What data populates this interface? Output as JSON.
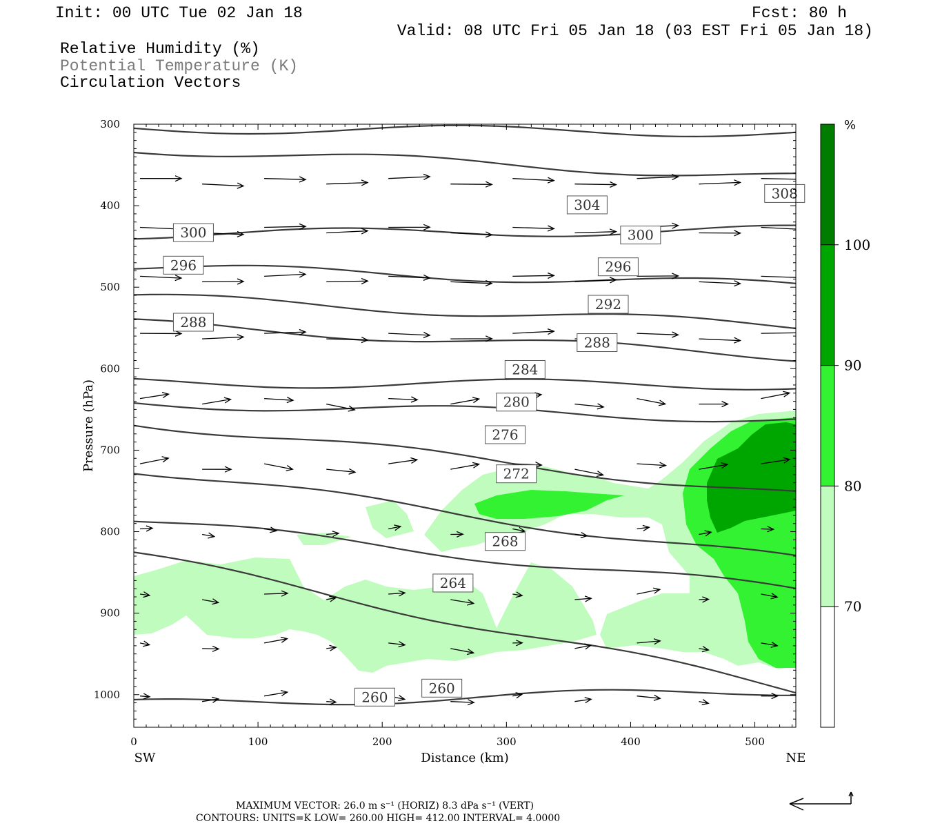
{
  "header": {
    "init": "Init: 00 UTC Tue 02 Jan 18",
    "fcst": "Fcst:   80 h",
    "valid": "Valid: 08 UTC Fri 05 Jan 18 (03 EST Fri 05 Jan 18)",
    "legend": [
      {
        "text": "Relative Humidity (%)",
        "color": "#000000"
      },
      {
        "text": "Potential Temperature (K)",
        "color": "#7a7a7a"
      },
      {
        "text": "Circulation Vectors",
        "color": "#000000"
      }
    ]
  },
  "chart_data": {
    "type": "cross-section",
    "xlabel": "Distance (km)",
    "ylabel": "Pressure (hPa)",
    "xlim": [
      0,
      533
    ],
    "ylim": [
      1040,
      300
    ],
    "y_reversed": true,
    "x_ticks": [
      0,
      100,
      200,
      300,
      400,
      500
    ],
    "y_ticks": [
      300,
      400,
      500,
      600,
      700,
      800,
      900,
      1000
    ],
    "endpoints": {
      "left": "SW",
      "right": "NE"
    },
    "theta_contours": [
      {
        "label": "308",
        "p_left": 305,
        "p_right": 310
      },
      {
        "label": "304",
        "p_left": 330,
        "p_right": 365
      },
      {
        "label": "300",
        "p_left": 435,
        "p_right": 430
      },
      {
        "label": "296",
        "p_left": 475,
        "p_right": 498
      },
      {
        "label": "292",
        "p_left": 512,
        "p_right": 548
      },
      {
        "label": "288",
        "p_left": 545,
        "p_right": 585
      },
      {
        "label": "284",
        "p_left": 617,
        "p_right": 620
      },
      {
        "label": "280",
        "p_left": 642,
        "p_right": 662
      },
      {
        "label": "276",
        "p_left": 665,
        "p_right": 755
      },
      {
        "label": "272",
        "p_left": 723,
        "p_right": 835
      },
      {
        "label": "268",
        "p_left": 785,
        "p_right": 872
      },
      {
        "label": "264",
        "p_left": 828,
        "p_right": 995
      },
      {
        "label": "260",
        "p_left": 1012,
        "p_right": 995
      }
    ],
    "contour_labels": [
      {
        "text": "308",
        "x": 509,
        "p": 385
      },
      {
        "text": "304",
        "x": 350,
        "p": 399
      },
      {
        "text": "300",
        "x": 33,
        "p": 433
      },
      {
        "text": "300",
        "x": 393,
        "p": 436
      },
      {
        "text": "296",
        "x": 25,
        "p": 473
      },
      {
        "text": "296",
        "x": 375,
        "p": 475
      },
      {
        "text": "292",
        "x": 367,
        "p": 521
      },
      {
        "text": "288",
        "x": 33,
        "p": 543
      },
      {
        "text": "288",
        "x": 358,
        "p": 568
      },
      {
        "text": "284",
        "x": 300,
        "p": 601
      },
      {
        "text": "280",
        "x": 293,
        "p": 641
      },
      {
        "text": "276",
        "x": 284,
        "p": 681
      },
      {
        "text": "272",
        "x": 293,
        "p": 729
      },
      {
        "text": "268",
        "x": 284,
        "p": 812
      },
      {
        "text": "264",
        "x": 242,
        "p": 863
      },
      {
        "text": "260",
        "x": 233,
        "p": 992
      },
      {
        "text": "260",
        "x": 179,
        "p": 1003
      }
    ],
    "rh_fill": [
      {
        "level": "70-80",
        "color": "#c0fcbd"
      },
      {
        "level": "80-90",
        "color": "#32f232"
      },
      {
        "level": "90-100",
        "color": "#00a600"
      }
    ],
    "colorbar": {
      "unit": "%",
      "levels": [
        "70",
        "80",
        "90",
        "100"
      ],
      "colors": [
        "#ffffff",
        "#c0fcbd",
        "#32f232",
        "#00a600",
        "#007d00"
      ]
    }
  },
  "footer": {
    "max_vector": "MAXIMUM VECTOR:  26.0 m s⁻¹ (HORIZ)          8.3 dPa s⁻¹ (VERT)",
    "contours": "CONTOURS:  UNITS=K  LOW=   260.00         HIGH=   412.00         INTERVAL=     4.0000"
  }
}
